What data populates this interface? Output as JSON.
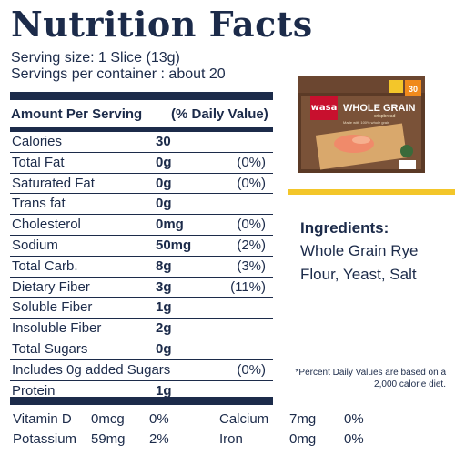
{
  "title": "Nutrition Facts",
  "serving_size": "Serving size: 1 Slice (13g)",
  "servings_per_container": "Servings per container : about 20",
  "header": {
    "amount_per_serving": "Amount Per Serving",
    "daily_value": "(% Daily Value)"
  },
  "nutrients": [
    {
      "name": "Calories",
      "amount": "30",
      "dv": ""
    },
    {
      "name": "Total Fat",
      "amount": "0g",
      "dv": "(0%)"
    },
    {
      "name": "Saturated Fat",
      "amount": "0g",
      "dv": "(0%)"
    },
    {
      "name": "Trans fat",
      "amount": "0g",
      "dv": ""
    },
    {
      "name": "Cholesterol",
      "amount": "0mg",
      "dv": "(0%)"
    },
    {
      "name": "Sodium",
      "amount": "50mg",
      "dv": "(2%)"
    },
    {
      "name": "Total Carb.",
      "amount": "8g",
      "dv": "(3%)"
    },
    {
      "name": "Dietary Fiber",
      "amount": "3g",
      "dv": "(11%)"
    },
    {
      "name": "Soluble Fiber",
      "amount": "1g",
      "dv": ""
    },
    {
      "name": "Insoluble Fiber",
      "amount": "2g",
      "dv": ""
    },
    {
      "name": "Total Sugars",
      "amount": "0g",
      "dv": ""
    },
    {
      "name": "Includes 0g added Sugars",
      "amount": "",
      "dv": "(0%)"
    },
    {
      "name": "Protein",
      "amount": "1g",
      "dv": ""
    }
  ],
  "vitamins": [
    {
      "name": "Vitamin D",
      "amount": "0mcg",
      "dv": "0%"
    },
    {
      "name": "Calcium",
      "amount": "7mg",
      "dv": "0%"
    },
    {
      "name": "Potassium",
      "amount": "59mg",
      "dv": "2%"
    },
    {
      "name": "Iron",
      "amount": "0mg",
      "dv": "0%"
    }
  ],
  "product": {
    "brand": "wasa",
    "name": "WHOLE GRAIN",
    "subtitle": "crispbread",
    "count_badge": "30",
    "tagline": "Made with 100% whole grain"
  },
  "ingredients": {
    "title": "Ingredients:",
    "text": "Whole Grain Rye Flour, Yeast, Salt"
  },
  "footnote": "*Percent Daily Values are based on a 2,000 calorie diet.",
  "colors": {
    "navy": "#1c2b4a",
    "accent_yellow": "#f3c62a",
    "wasa_red": "#c8102e"
  }
}
